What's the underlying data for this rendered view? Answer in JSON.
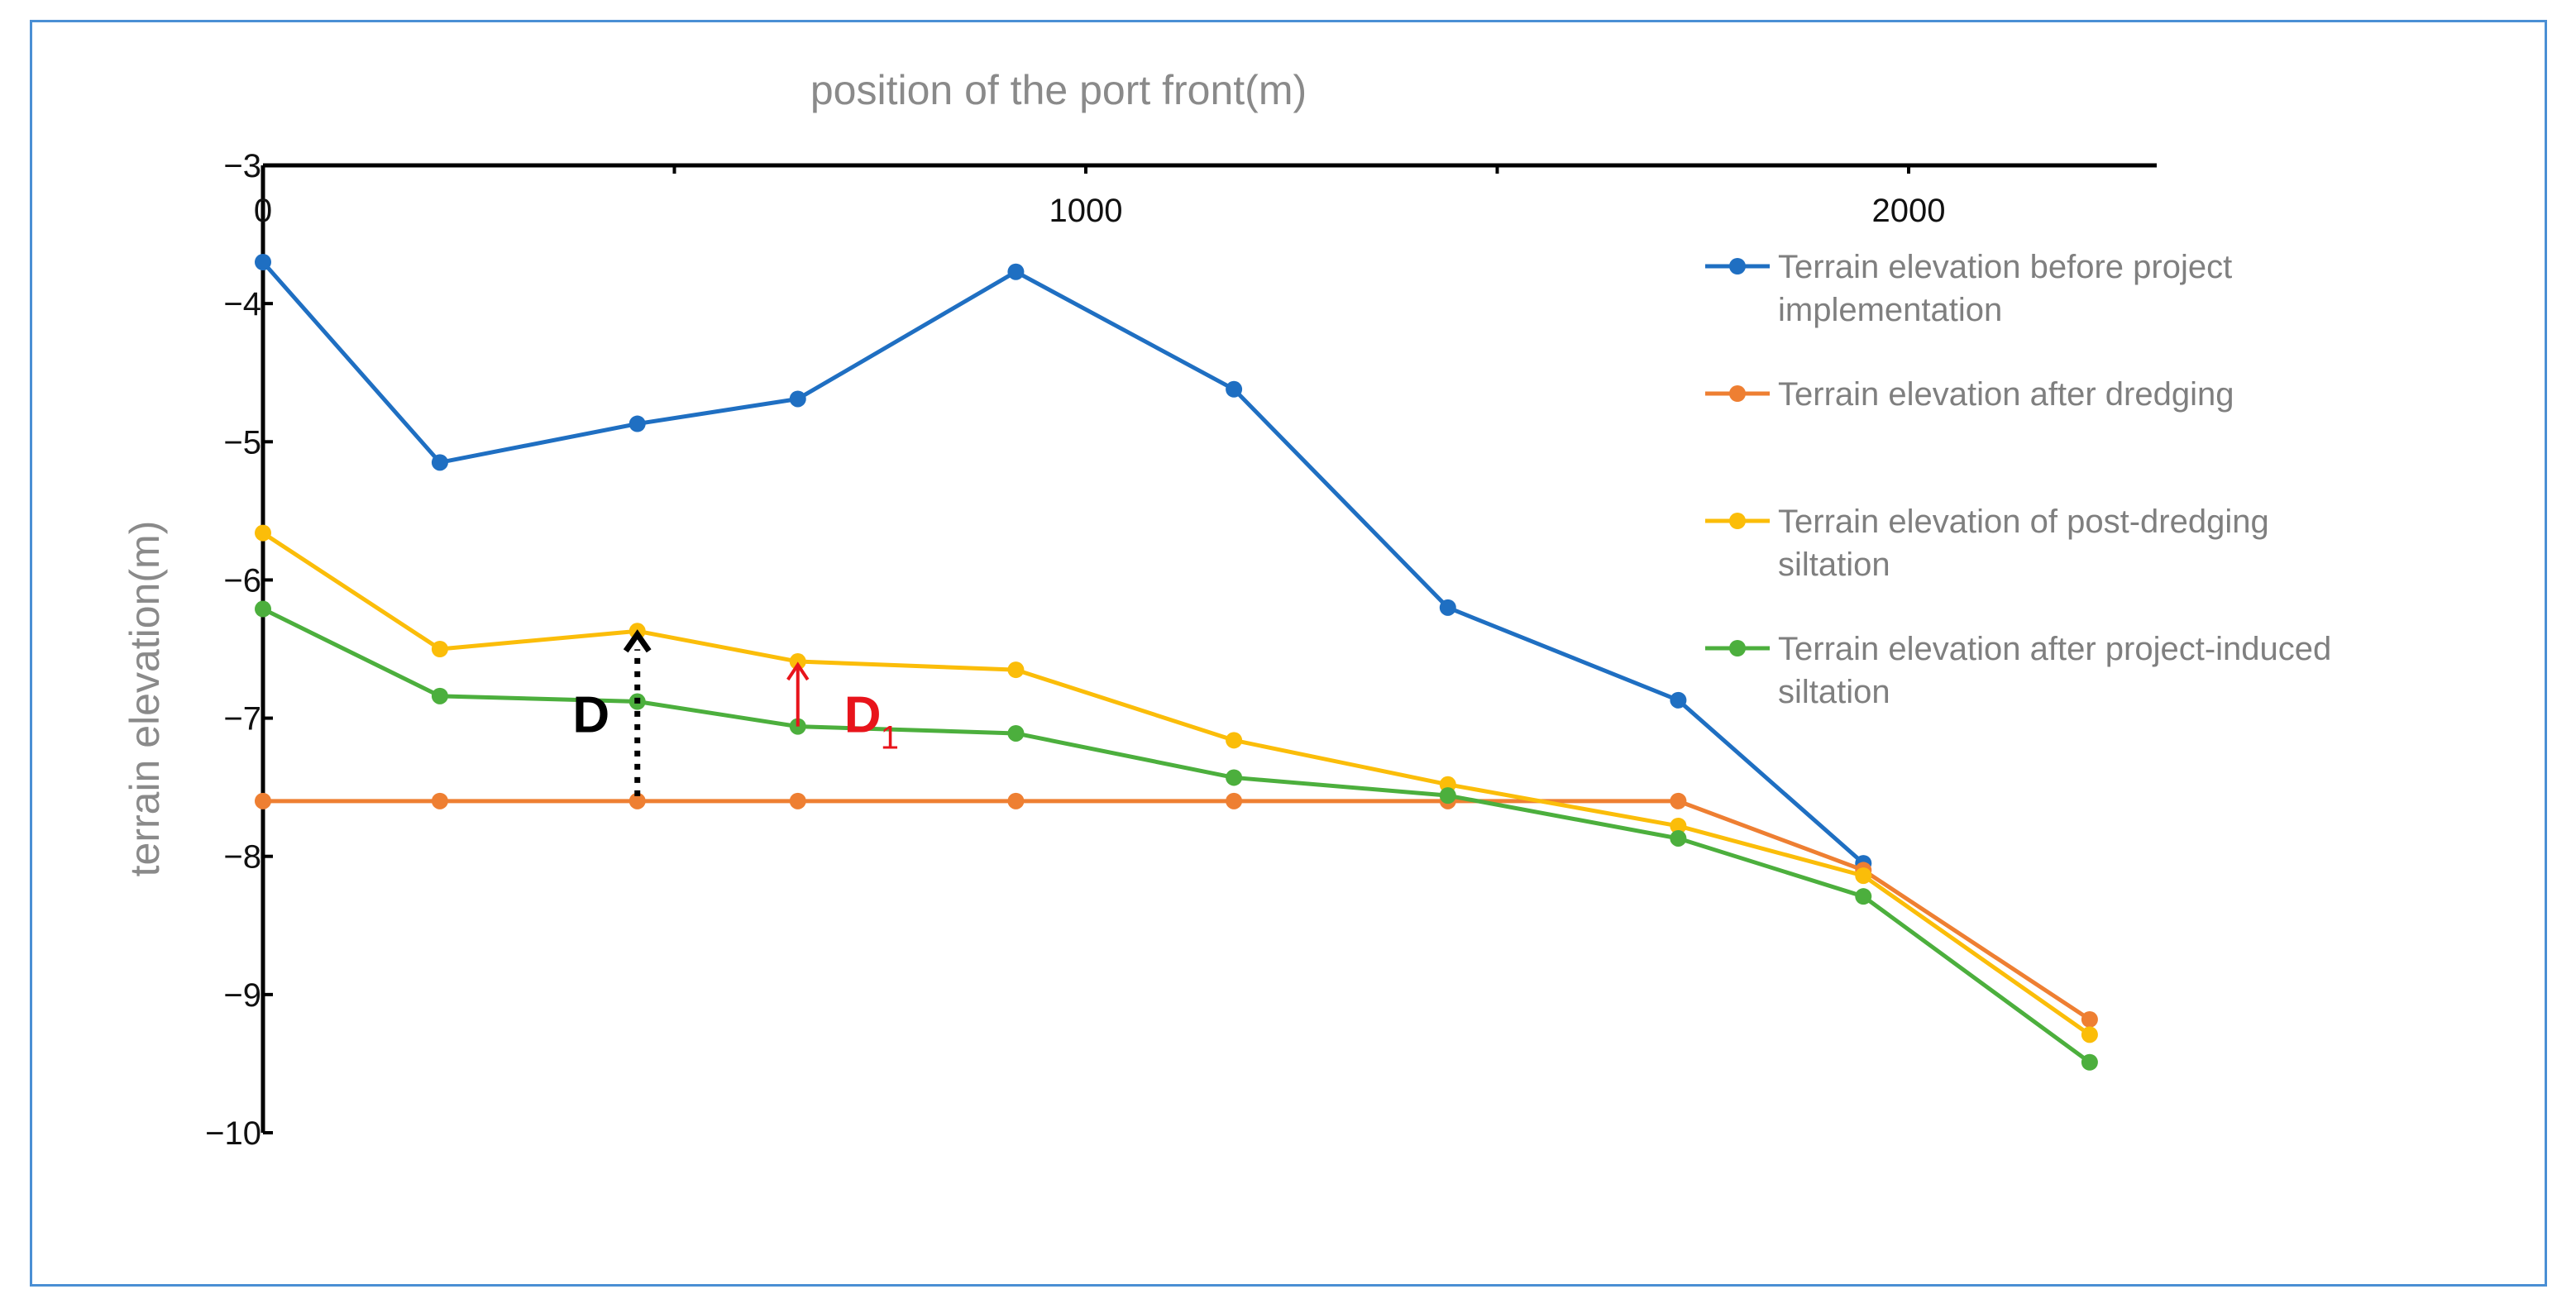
{
  "chart_data": {
    "type": "line",
    "title": "",
    "xlabel": "position of the port front(m)",
    "ylabel": "terrain elevation(m)",
    "x_axis_position": "top",
    "xlim": [
      0,
      2300
    ],
    "ylim": [
      -10,
      -3
    ],
    "x_ticks": [
      0,
      1000,
      2000
    ],
    "y_ticks": [
      -3,
      -4,
      -5,
      -6,
      -7,
      -8,
      -9,
      -10
    ],
    "x_tick_labels": [
      "0",
      "1000",
      "2000"
    ],
    "y_tick_labels": [
      "−3",
      "−4",
      "−5",
      "−6",
      "−7",
      "−8",
      "−9",
      "−10"
    ],
    "grid": false,
    "legend_position": "right",
    "x": [
      0,
      215,
      455,
      650,
      915,
      1180,
      1440,
      1720,
      1945,
      2220
    ],
    "series": [
      {
        "name": "Terrain elevation before project implementation",
        "name_lines": [
          "Terrain elevation before project",
          "implementation"
        ],
        "color": "#1f6fc2",
        "values": [
          -3.7,
          -5.15,
          -4.87,
          -4.69,
          -3.77,
          -4.62,
          -6.2,
          -6.87,
          -8.05,
          null
        ]
      },
      {
        "name": "Terrain elevation after dredging",
        "name_lines": [
          "Terrain elevation after dredging"
        ],
        "color": "#ee7f32",
        "values": [
          -7.6,
          -7.6,
          -7.6,
          -7.6,
          -7.6,
          -7.6,
          -7.6,
          -7.6,
          -8.1,
          -9.18
        ]
      },
      {
        "name": "Terrain elevation of post-dredging siltation",
        "name_lines": [
          "Terrain elevation of post-dredging",
          "siltation"
        ],
        "color": "#fbbd09",
        "values": [
          -5.66,
          -6.5,
          -6.37,
          -6.59,
          -6.65,
          -7.16,
          -7.48,
          -7.78,
          -8.14,
          -9.29
        ]
      },
      {
        "name": "Terrain elevation after project-induced siltation",
        "name_lines": [
          "Terrain elevation after project-induced",
          "siltation"
        ],
        "color": "#4caf3d",
        "values": [
          -6.21,
          -6.84,
          -6.88,
          -7.06,
          -7.11,
          -7.43,
          -7.56,
          -7.87,
          -8.29,
          -9.49
        ]
      }
    ],
    "annotations": [
      {
        "label": "D",
        "color": "#000000",
        "style": "dotted-arrow",
        "x": 455,
        "from": -7.6,
        "to": -6.37
      },
      {
        "label": "D",
        "subscript": "1",
        "color": "#e8141b",
        "style": "solid-arrow",
        "x": 650,
        "from": -7.06,
        "to": -6.59
      }
    ]
  }
}
